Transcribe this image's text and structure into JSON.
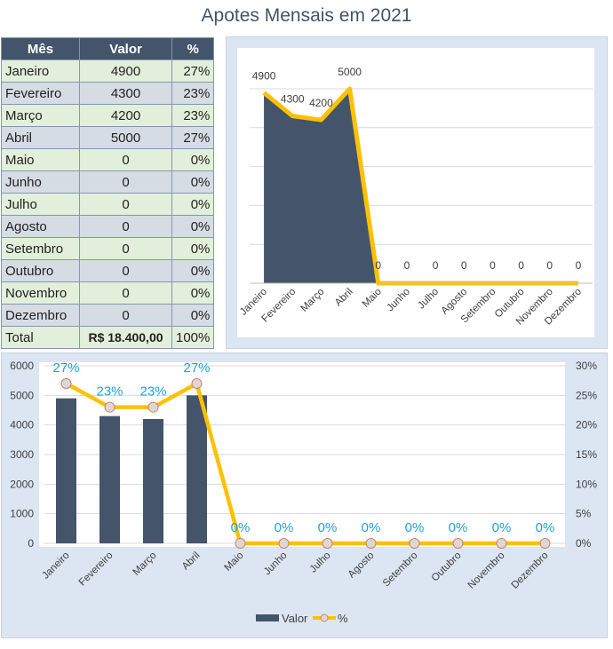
{
  "title": "Apotes Mensais em 2021",
  "table": {
    "headers": [
      "Mês",
      "Valor",
      "%"
    ],
    "rows": [
      [
        "Janeiro",
        "4900",
        "27%"
      ],
      [
        "Fevereiro",
        "4300",
        "23%"
      ],
      [
        "Março",
        "4200",
        "23%"
      ],
      [
        "Abril",
        "5000",
        "27%"
      ],
      [
        "Maio",
        "0",
        "0%"
      ],
      [
        "Junho",
        "0",
        "0%"
      ],
      [
        "Julho",
        "0",
        "0%"
      ],
      [
        "Agosto",
        "0",
        "0%"
      ],
      [
        "Setembro",
        "0",
        "0%"
      ],
      [
        "Outubro",
        "0",
        "0%"
      ],
      [
        "Novembro",
        "0",
        "0%"
      ],
      [
        "Dezembro",
        "0",
        "0%"
      ]
    ],
    "total": [
      "Total",
      "R$ 18.400,00",
      "100%"
    ]
  },
  "chart_data": [
    {
      "type": "area",
      "categories": [
        "Janeiro",
        "Fevereiro",
        "Março",
        "Abril",
        "Maio",
        "Junho",
        "Julho",
        "Agosto",
        "Setembro",
        "Outubro",
        "Novembro",
        "Dezembro"
      ],
      "values": [
        4900,
        4300,
        4200,
        5000,
        0,
        0,
        0,
        0,
        0,
        0,
        0,
        0
      ],
      "data_labels": [
        "4900",
        "4300",
        "4200",
        "5000",
        "0",
        "0",
        "0",
        "0",
        "0",
        "0",
        "0",
        "0"
      ],
      "ylim": [
        0,
        5000
      ],
      "grid": true,
      "colors": {
        "area": "#44546a",
        "line": "#ffc000"
      }
    },
    {
      "type": "bar",
      "categories": [
        "Janeiro",
        "Fevereiro",
        "Março",
        "Abril",
        "Maio",
        "Junho",
        "Julho",
        "Agosto",
        "Setembro",
        "Outubro",
        "Novembro",
        "Dezembro"
      ],
      "series": [
        {
          "name": "Valor",
          "type": "bar",
          "values": [
            4900,
            4300,
            4200,
            5000,
            0,
            0,
            0,
            0,
            0,
            0,
            0,
            0
          ]
        },
        {
          "name": "%",
          "type": "line",
          "axis": "secondary",
          "values": [
            27,
            23,
            23,
            27,
            0,
            0,
            0,
            0,
            0,
            0,
            0,
            0
          ],
          "data_labels": [
            "27%",
            "23%",
            "23%",
            "27%",
            "0%",
            "0%",
            "0%",
            "0%",
            "0%",
            "0%",
            "0%",
            "0%"
          ]
        }
      ],
      "y_ticks": [
        "0",
        "1000",
        "2000",
        "3000",
        "4000",
        "5000",
        "6000"
      ],
      "y2_ticks": [
        "0%",
        "5%",
        "10%",
        "15%",
        "20%",
        "25%",
        "30%"
      ],
      "ylim": [
        0,
        6000
      ],
      "y2lim": [
        0,
        30
      ],
      "grid": true,
      "legend": "bottom",
      "colors": {
        "bar": "#44546a",
        "line": "#ffc000",
        "marker_fill": "#d9d9d9",
        "marker_stroke": "#e07a5f",
        "label": "#1fa3d8"
      }
    }
  ]
}
